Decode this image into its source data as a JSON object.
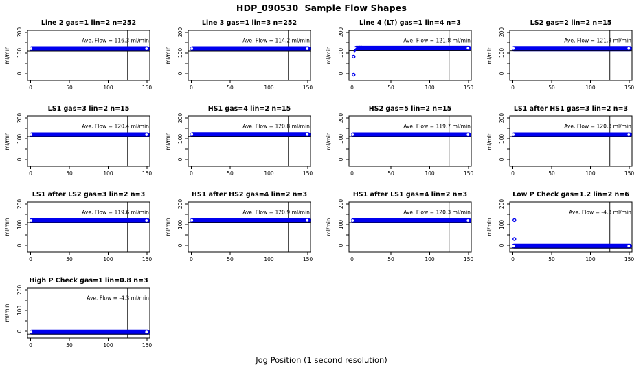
{
  "figure": {
    "title": "HDP_090530  Sample Flow Shapes",
    "xlabel": "Jog Position (1 second resolution)",
    "point_color": "#0000ee",
    "axis_color": "#000000",
    "background": "#ffffff"
  },
  "chart_data": {
    "type": "scatter",
    "grid": {
      "rows": 4,
      "cols": 4,
      "count": 13
    },
    "xlim": [
      0,
      155
    ],
    "ylim": [
      -33,
      210
    ],
    "x_ticks": [
      0,
      50,
      100,
      150
    ],
    "y_ticks": [
      0,
      50,
      100,
      150,
      200
    ],
    "y_tick_labels": [
      0,
      100,
      200
    ],
    "ylabel": "ml/min",
    "vline_x": 125,
    "band_halfwidth_units": 12,
    "subplots": [
      {
        "title": "Line 2 gas=1 lin=2 n=252",
        "ave_flow": 116.3,
        "ave_label": "Ave. Flow =  116.3  ml/min",
        "band_y": 120,
        "band_x": [
          0,
          152
        ],
        "outliers": [],
        "cluster": []
      },
      {
        "title": "Line 3 gas=1 lin=3 n=252",
        "ave_flow": 114.2,
        "ave_label": "Ave. Flow =  114.2  ml/min",
        "band_y": 120,
        "band_x": [
          0,
          152
        ],
        "outliers": [],
        "cluster": []
      },
      {
        "title": "Line 4 (LT) gas=1 lin=4 n=3",
        "ave_flow": 121.8,
        "ave_label": "Ave. Flow =  121.8  ml/min",
        "band_y": 122,
        "band_x": [
          4,
          152
        ],
        "outliers": [
          [
            2,
            -5
          ],
          [
            2,
            82
          ]
        ],
        "cluster": [
          [
            3,
            106
          ],
          [
            3.8,
            112
          ],
          [
            4.6,
            117
          ],
          [
            5.5,
            121
          ],
          [
            6.5,
            125
          ],
          [
            8,
            128
          ],
          [
            10,
            130
          ],
          [
            12,
            130
          ],
          [
            14,
            129
          ],
          [
            16,
            128
          ],
          [
            19,
            126
          ],
          [
            22,
            125
          ]
        ]
      },
      {
        "title": "LS2 gas=2 lin=2 n=15",
        "ave_flow": 121.3,
        "ave_label": "Ave. Flow =  121.3  ml/min",
        "band_y": 121,
        "band_x": [
          0,
          152
        ],
        "outliers": [],
        "cluster": []
      },
      {
        "title": "LS1 gas=3 lin=2 n=15",
        "ave_flow": 120.4,
        "ave_label": "Ave. Flow =  120.4  ml/min",
        "band_y": 120,
        "band_x": [
          0,
          152
        ],
        "outliers": [],
        "cluster": []
      },
      {
        "title": "HS1 gas=4 lin=2 n=15",
        "ave_flow": 120.8,
        "ave_label": "Ave. Flow =  120.8  ml/min",
        "band_y": 121,
        "band_x": [
          0,
          152
        ],
        "outliers": [],
        "cluster": []
      },
      {
        "title": "HS2 gas=5 lin=2 n=15",
        "ave_flow": 119.7,
        "ave_label": "Ave. Flow =  119.7  ml/min",
        "band_y": 120,
        "band_x": [
          0,
          152
        ],
        "outliers": [],
        "cluster": []
      },
      {
        "title": "LS1 after HS1 gas=3 lin=2 n=3",
        "ave_flow": 120.3,
        "ave_label": "Ave. Flow =  120.3  ml/min",
        "band_y": 120,
        "band_x": [
          0,
          152
        ],
        "outliers": [],
        "cluster": []
      },
      {
        "title": "LS1 after LS2 gas=3 lin=2 n=3",
        "ave_flow": 119.6,
        "ave_label": "Ave. Flow =  119.6  ml/min",
        "band_y": 120,
        "band_x": [
          0,
          152
        ],
        "outliers": [],
        "cluster": []
      },
      {
        "title": "HS1 after HS2 gas=4 lin=2 n=3",
        "ave_flow": 120.9,
        "ave_label": "Ave. Flow =  120.9  ml/min",
        "band_y": 121,
        "band_x": [
          0,
          152
        ],
        "outliers": [],
        "cluster": []
      },
      {
        "title": "HS1 after LS1 gas=4 lin=2 n=3",
        "ave_flow": 120.3,
        "ave_label": "Ave. Flow =  120.3  ml/min",
        "band_y": 120,
        "band_x": [
          0,
          152
        ],
        "outliers": [],
        "cluster": []
      },
      {
        "title": "Low P Check gas=1.2 lin=2 n=6",
        "ave_flow": -4.3,
        "ave_label": "Ave. Flow =  -4.3  ml/min",
        "band_y": -4,
        "band_x": [
          0,
          152
        ],
        "outliers": [
          [
            2,
            122
          ],
          [
            2,
            30
          ]
        ],
        "cluster": []
      },
      {
        "title": "High P Check gas=1 lin=0.8 n=3",
        "ave_flow": -4.3,
        "ave_label": "Ave. Flow =  -4.3  ml/min",
        "band_y": -4,
        "band_x": [
          0,
          152
        ],
        "outliers": [],
        "cluster": []
      }
    ]
  }
}
